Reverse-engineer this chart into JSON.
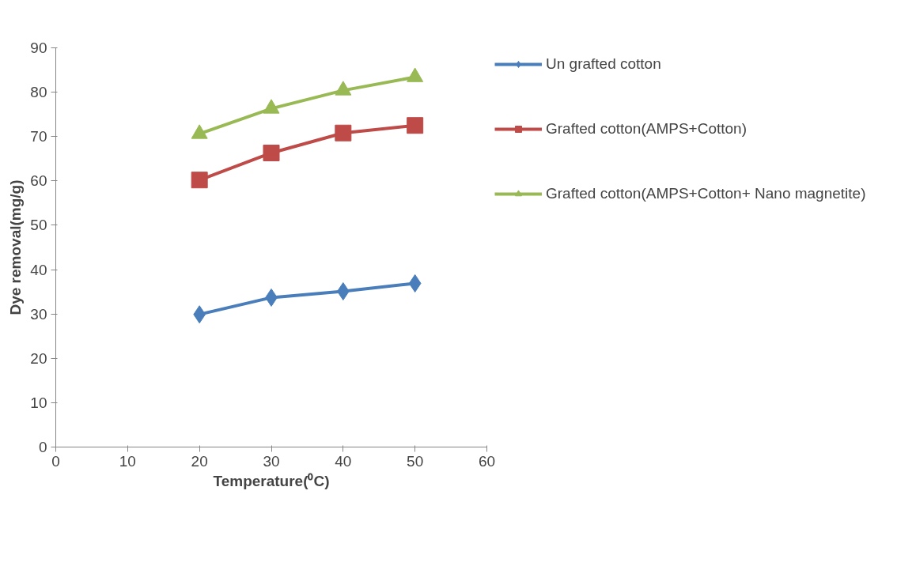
{
  "chart_data": {
    "type": "line",
    "xlabel": "Temperature(⁰C)",
    "ylabel": "Dye removal(mg/g)",
    "x": [
      20,
      30,
      40,
      50
    ],
    "xlim": [
      0,
      60
    ],
    "xticks": [
      0,
      10,
      20,
      30,
      40,
      50,
      60
    ],
    "ylim": [
      0,
      90
    ],
    "yticks": [
      0,
      10,
      20,
      30,
      40,
      50,
      60,
      70,
      80,
      90
    ],
    "grid": false,
    "legend": "right",
    "series": [
      {
        "name": "Un grafted cotton",
        "color": "#4a7ebb",
        "marker": "diamond",
        "values": [
          29.9,
          33.7,
          35.1,
          36.9
        ]
      },
      {
        "name": "Grafted cotton(AMPS+Cotton)",
        "color": "#be4b48",
        "marker": "square",
        "values": [
          60.2,
          66.3,
          70.8,
          72.5
        ]
      },
      {
        "name": "Grafted cotton(AMPS+Cotton+ Nano magnetite)",
        "color": "#98b954",
        "marker": "triangle",
        "values": [
          70.6,
          76.3,
          80.4,
          83.4
        ]
      }
    ]
  }
}
